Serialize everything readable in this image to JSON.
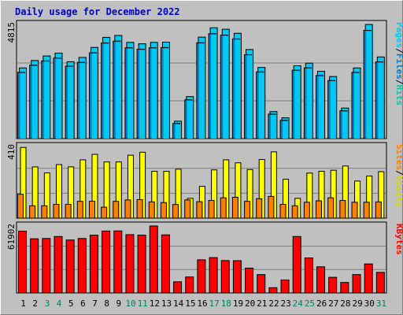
{
  "chart_data": {
    "type": "bar",
    "title": "Daily usage for December 2022",
    "categories": [
      "1",
      "2",
      "3",
      "4",
      "5",
      "6",
      "7",
      "8",
      "9",
      "10",
      "11",
      "12",
      "13",
      "14",
      "15",
      "16",
      "17",
      "18",
      "19",
      "20",
      "21",
      "22",
      "23",
      "24",
      "25",
      "26",
      "27",
      "28",
      "29",
      "30",
      "31"
    ],
    "weekend_days": [
      "3",
      "4",
      "10",
      "11",
      "17",
      "18",
      "24",
      "25",
      "31"
    ],
    "panels": [
      {
        "name": "top",
        "ymax_label": "4815",
        "ymax": 4815,
        "right_labels": [
          "Pages",
          "/",
          "Files",
          "/",
          "Hits"
        ],
        "series": [
          {
            "name": "Hits",
            "color": "#00c8f0",
            "values": [
              2960,
              3270,
              3460,
              3580,
              3220,
              3400,
              3820,
              4240,
              4320,
              4030,
              3970,
              4030,
              4040,
              730,
              1760,
              4250,
              4640,
              4580,
              4410,
              3730,
              2980,
              1130,
              870,
              3050,
              3160,
              2820,
              2600,
              1280,
              2960,
              4780,
              3420
            ]
          },
          {
            "name": "Files",
            "color": "#0080c0",
            "values": [
              2840,
              3140,
              3320,
              3440,
              3100,
              3260,
              3660,
              4070,
              4150,
              3870,
              3810,
              3870,
              3880,
              700,
              1690,
              4080,
              4460,
              4400,
              4240,
              3580,
              2860,
              1090,
              830,
              2930,
              3030,
              2710,
              2500,
              1230,
              2840,
              4600,
              3280
            ]
          },
          {
            "name": "Pages",
            "color": "#00c8f0",
            "values": [
              0,
              0,
              0,
              0,
              0,
              0,
              0,
              0,
              0,
              0,
              0,
              0,
              0,
              0,
              0,
              0,
              0,
              0,
              0,
              0,
              0,
              0,
              0,
              0,
              0,
              0,
              0,
              0,
              0,
              0,
              0
            ]
          }
        ]
      },
      {
        "name": "middle",
        "ymax_label": "410",
        "ymax": 410,
        "right_labels": [
          "Sites",
          "/",
          "Visits"
        ],
        "series": [
          {
            "name": "Visits",
            "color": "#ffff00",
            "values": [
              400,
              290,
              256,
              303,
              290,
              330,
              361,
              318,
              318,
              356,
              373,
              265,
              265,
              277,
              112,
              180,
              273,
              330,
              313,
              275,
              332,
              375,
              220,
              112,
              255,
              265,
              271,
              295,
              210,
              238,
              263
            ]
          },
          {
            "name": "Sites",
            "color": "#ff8000",
            "values": [
              135,
              70,
              70,
              78,
              78,
              95,
              96,
              62,
              95,
              103,
              105,
              92,
              88,
              77,
              103,
              93,
              100,
              115,
              118,
              95,
              110,
              123,
              78,
              70,
              90,
              98,
              115,
              100,
              90,
              90,
              92
            ]
          }
        ]
      },
      {
        "name": "bottom",
        "ymax_label": "61902",
        "ymax": 61902,
        "right_labels": [
          "KBytes"
        ],
        "series": [
          {
            "name": "KBytes",
            "color": "#ff0000",
            "values": [
              56500,
              49500,
              49800,
              51600,
              48400,
              49800,
              52800,
              56600,
              56700,
              53300,
              52900,
              61200,
              53100,
              10200,
              14600,
              30300,
              32300,
              29600,
              29500,
              22700,
              16800,
              4800,
              11900,
              51600,
              32000,
              23900,
              14300,
              9600,
              16800,
              26500,
              18800
            ]
          }
        ]
      }
    ]
  }
}
